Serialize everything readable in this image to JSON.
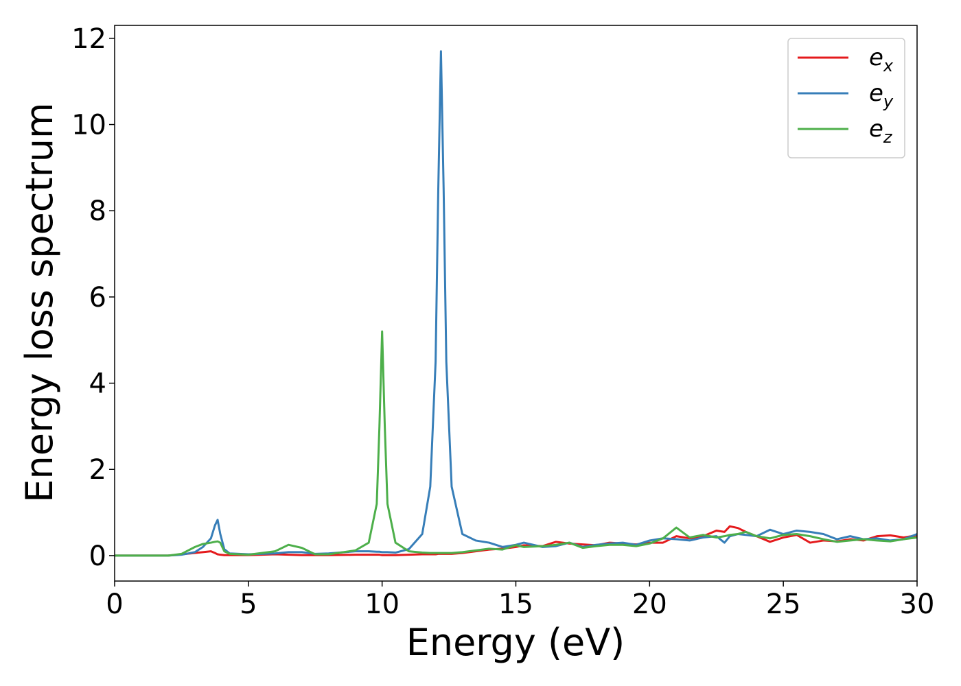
{
  "chart_data": {
    "type": "line",
    "xlabel": "Energy (eV)",
    "ylabel": "Energy loss spectrum",
    "x": [
      0,
      1,
      2,
      2.5,
      3,
      3.3,
      3.6,
      3.75,
      3.85,
      3.95,
      4.1,
      4.3,
      5,
      6,
      6.5,
      7,
      7.5,
      8,
      9,
      9.5,
      9.8,
      9.9,
      10,
      10.1,
      10.2,
      10.5,
      11,
      11.5,
      11.8,
      12,
      12.1,
      12.2,
      12.3,
      12.4,
      12.6,
      13,
      13.5,
      14,
      14.5,
      15,
      15.3,
      16,
      16.5,
      17,
      17.5,
      18,
      18.5,
      19,
      19.5,
      20,
      20.5,
      21,
      21.5,
      22,
      22.5,
      22.8,
      23,
      23.3,
      23.6,
      24,
      24.5,
      25,
      25.5,
      26,
      26.5,
      27,
      27.5,
      28,
      28.5,
      29,
      29.5,
      30
    ],
    "series": [
      {
        "name": "ex",
        "color": "#e41a1c",
        "values": [
          0,
          0,
          0,
          0.03,
          0.06,
          0.08,
          0.1,
          0.06,
          0.03,
          0.02,
          0.01,
          0.01,
          0.01,
          0.03,
          0.02,
          0.01,
          0.01,
          0.01,
          0.02,
          0.02,
          0.02,
          0.02,
          0.01,
          0.01,
          0.01,
          0.01,
          0.02,
          0.03,
          0.03,
          0.03,
          0.04,
          0.04,
          0.04,
          0.04,
          0.04,
          0.06,
          0.1,
          0.14,
          0.16,
          0.2,
          0.24,
          0.22,
          0.32,
          0.28,
          0.26,
          0.24,
          0.3,
          0.28,
          0.26,
          0.3,
          0.3,
          0.45,
          0.4,
          0.45,
          0.58,
          0.55,
          0.68,
          0.64,
          0.55,
          0.45,
          0.32,
          0.42,
          0.48,
          0.3,
          0.35,
          0.33,
          0.38,
          0.35,
          0.45,
          0.47,
          0.42,
          0.47
        ]
      },
      {
        "name": "ey",
        "color": "#377eb8",
        "values": [
          0,
          0,
          0,
          0.02,
          0.08,
          0.2,
          0.4,
          0.7,
          0.83,
          0.5,
          0.15,
          0.05,
          0.03,
          0.05,
          0.08,
          0.08,
          0.04,
          0.05,
          0.1,
          0.1,
          0.09,
          0.09,
          0.08,
          0.08,
          0.08,
          0.07,
          0.15,
          0.5,
          1.6,
          4.5,
          8.5,
          11.7,
          8.5,
          4.5,
          1.6,
          0.5,
          0.35,
          0.3,
          0.2,
          0.25,
          0.3,
          0.2,
          0.22,
          0.3,
          0.2,
          0.25,
          0.28,
          0.3,
          0.25,
          0.35,
          0.4,
          0.38,
          0.35,
          0.42,
          0.45,
          0.3,
          0.45,
          0.5,
          0.48,
          0.45,
          0.6,
          0.5,
          0.58,
          0.55,
          0.5,
          0.38,
          0.45,
          0.38,
          0.4,
          0.35,
          0.38,
          0.5
        ]
      },
      {
        "name": "ez",
        "color": "#4daf4a",
        "values": [
          0,
          0,
          0,
          0.04,
          0.2,
          0.27,
          0.3,
          0.32,
          0.33,
          0.3,
          0.1,
          0.04,
          0.02,
          0.1,
          0.25,
          0.18,
          0.03,
          0.03,
          0.12,
          0.3,
          1.2,
          3.0,
          5.2,
          3.0,
          1.2,
          0.3,
          0.1,
          0.07,
          0.06,
          0.06,
          0.06,
          0.06,
          0.06,
          0.06,
          0.06,
          0.08,
          0.12,
          0.16,
          0.14,
          0.24,
          0.2,
          0.22,
          0.25,
          0.3,
          0.18,
          0.22,
          0.25,
          0.25,
          0.22,
          0.28,
          0.4,
          0.65,
          0.42,
          0.48,
          0.42,
          0.45,
          0.48,
          0.5,
          0.55,
          0.45,
          0.4,
          0.48,
          0.5,
          0.45,
          0.38,
          0.32,
          0.35,
          0.38,
          0.35,
          0.33,
          0.38,
          0.42
        ]
      }
    ],
    "xlim": [
      0,
      30
    ],
    "xticks": [
      0,
      5,
      10,
      15,
      20,
      25,
      30
    ],
    "ylim": [
      -0.59,
      12.3
    ],
    "yticks": [
      0,
      2,
      4,
      6,
      8,
      10,
      12
    ],
    "grid": false,
    "legend": "upper right"
  }
}
